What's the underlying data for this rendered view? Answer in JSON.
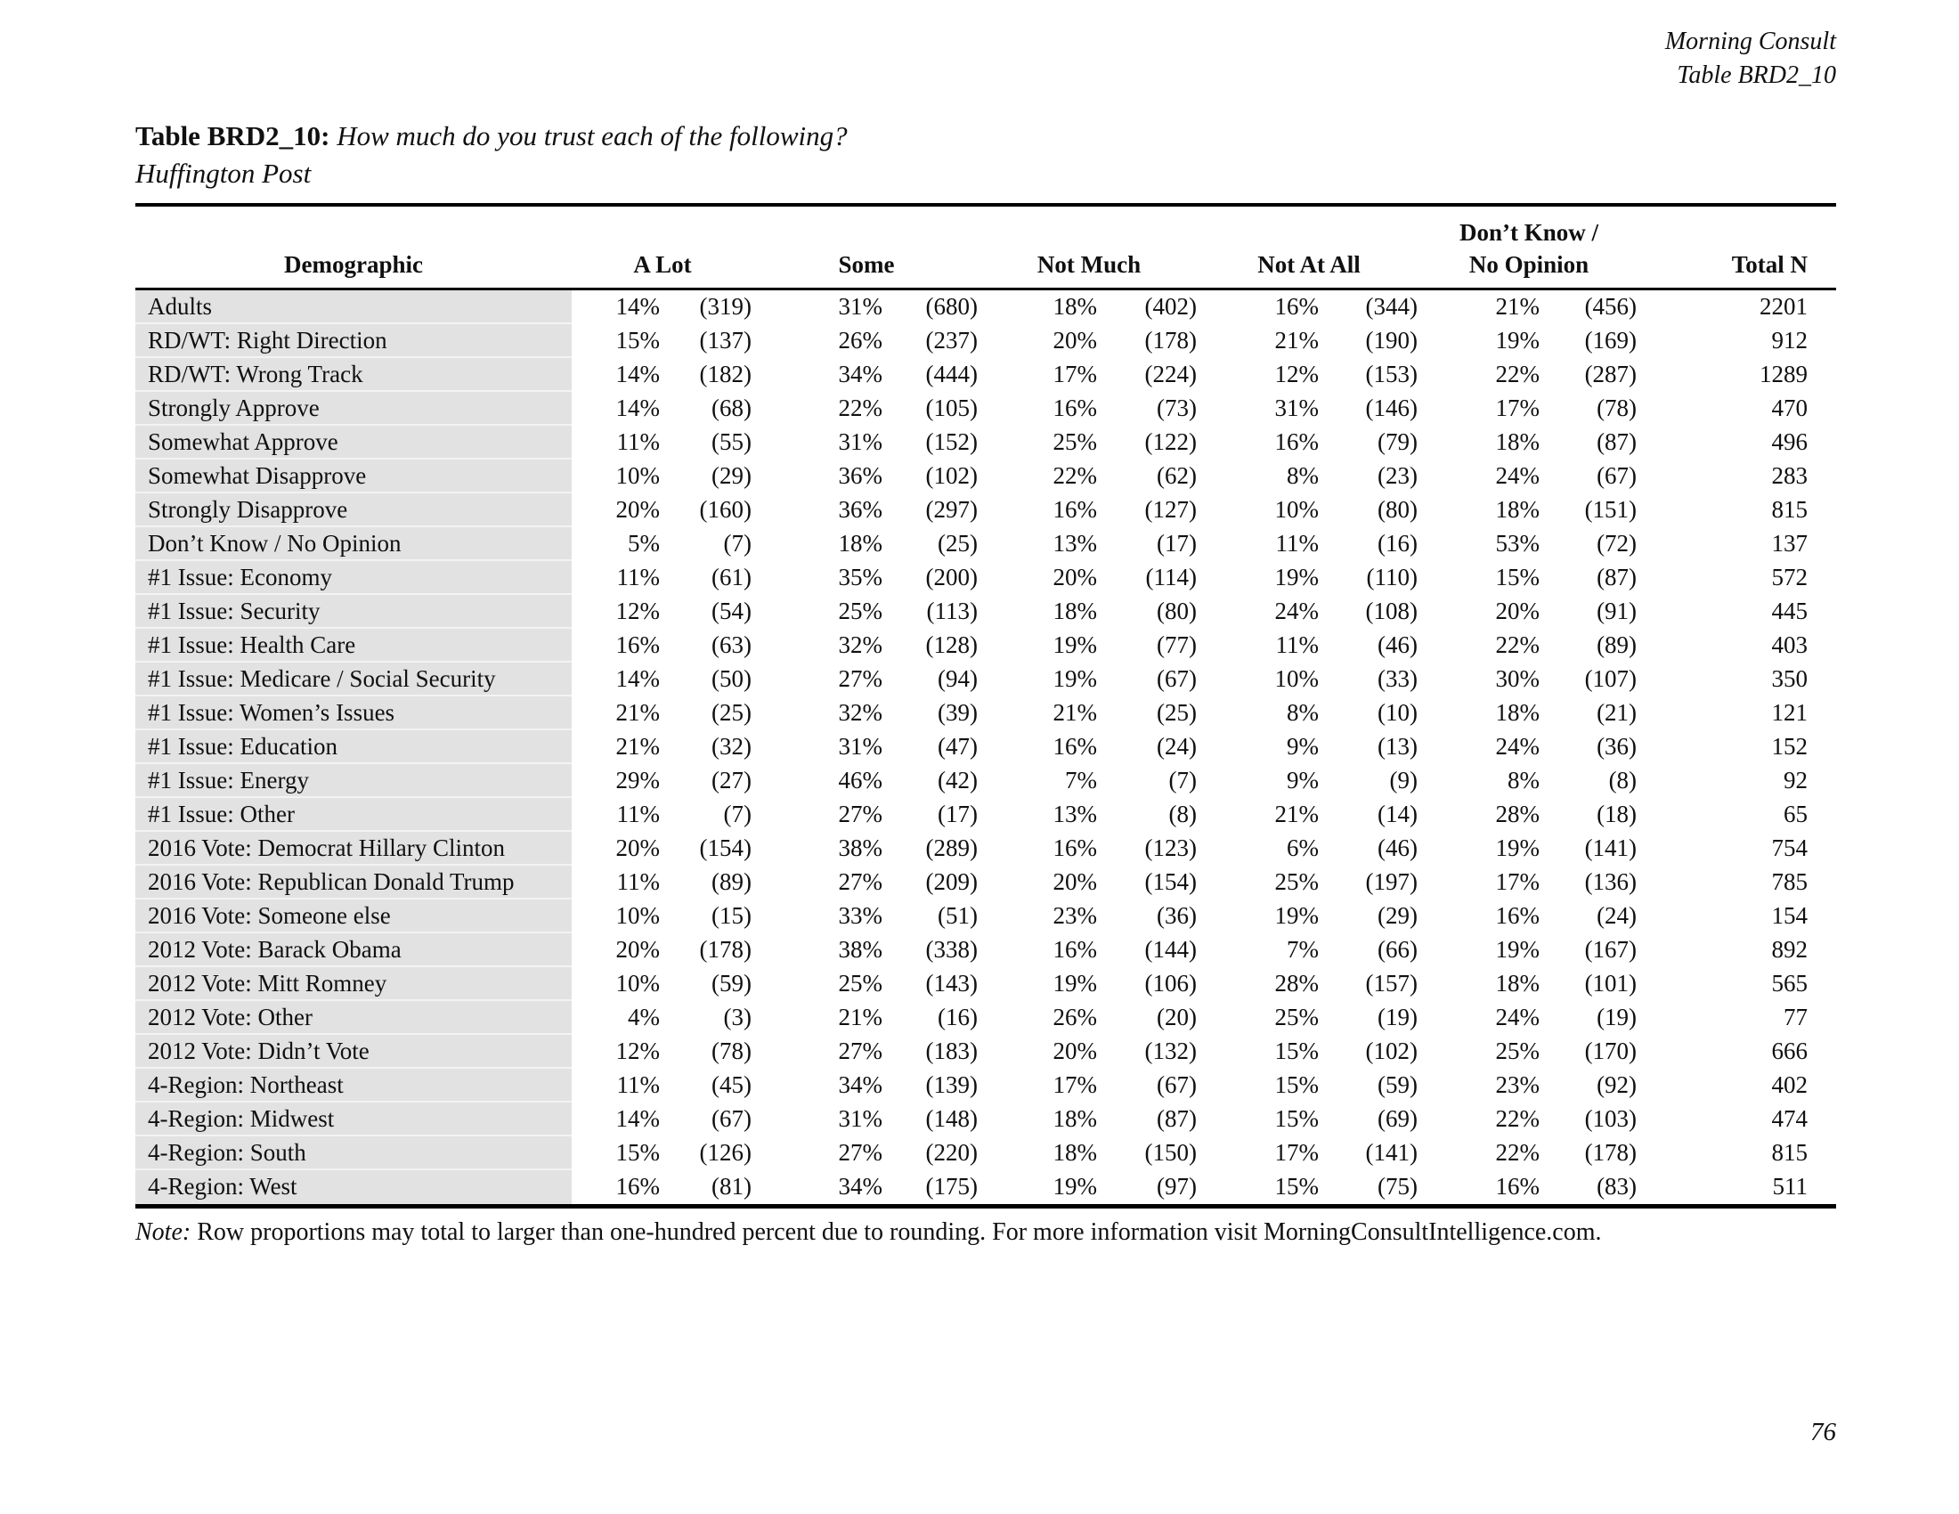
{
  "colors": {
    "demo_col_bg": "#e2e2e2",
    "rule_color": "#000000"
  },
  "page": {
    "corner_line1": "Morning Consult",
    "corner_line2": "Table BRD2_10",
    "title_label": "Table BRD2_10:",
    "title_question": "How much do you trust each of the following?",
    "subtitle": "Huffington Post",
    "note_label": "Note:",
    "note_text": "Row proportions may total to larger than one-hundred percent due to rounding. For more information visit MorningConsultIntelligence.com.",
    "page_number": "76"
  },
  "table": {
    "headers": {
      "demographic": "Demographic",
      "a_lot": "A Lot",
      "some": "Some",
      "not_much": "Not Much",
      "not_at_all": "Not At All",
      "dk_line1": "Don’t Know /",
      "dk_line2": "No Opinion",
      "total_n": "Total N"
    },
    "rows": [
      [
        "Adults",
        "14%",
        "(319)",
        "31%",
        "(680)",
        "18%",
        "(402)",
        "16%",
        "(344)",
        "21%",
        "(456)",
        "2201"
      ],
      [
        "RD/WT: Right Direction",
        "15%",
        "(137)",
        "26%",
        "(237)",
        "20%",
        "(178)",
        "21%",
        "(190)",
        "19%",
        "(169)",
        "912"
      ],
      [
        "RD/WT: Wrong Track",
        "14%",
        "(182)",
        "34%",
        "(444)",
        "17%",
        "(224)",
        "12%",
        "(153)",
        "22%",
        "(287)",
        "1289"
      ],
      [
        "Strongly Approve",
        "14%",
        "(68)",
        "22%",
        "(105)",
        "16%",
        "(73)",
        "31%",
        "(146)",
        "17%",
        "(78)",
        "470"
      ],
      [
        "Somewhat Approve",
        "11%",
        "(55)",
        "31%",
        "(152)",
        "25%",
        "(122)",
        "16%",
        "(79)",
        "18%",
        "(87)",
        "496"
      ],
      [
        "Somewhat Disapprove",
        "10%",
        "(29)",
        "36%",
        "(102)",
        "22%",
        "(62)",
        "8%",
        "(23)",
        "24%",
        "(67)",
        "283"
      ],
      [
        "Strongly Disapprove",
        "20%",
        "(160)",
        "36%",
        "(297)",
        "16%",
        "(127)",
        "10%",
        "(80)",
        "18%",
        "(151)",
        "815"
      ],
      [
        "Don’t Know / No Opinion",
        "5%",
        "(7)",
        "18%",
        "(25)",
        "13%",
        "(17)",
        "11%",
        "(16)",
        "53%",
        "(72)",
        "137"
      ],
      [
        "#1 Issue: Economy",
        "11%",
        "(61)",
        "35%",
        "(200)",
        "20%",
        "(114)",
        "19%",
        "(110)",
        "15%",
        "(87)",
        "572"
      ],
      [
        "#1 Issue: Security",
        "12%",
        "(54)",
        "25%",
        "(113)",
        "18%",
        "(80)",
        "24%",
        "(108)",
        "20%",
        "(91)",
        "445"
      ],
      [
        "#1 Issue: Health Care",
        "16%",
        "(63)",
        "32%",
        "(128)",
        "19%",
        "(77)",
        "11%",
        "(46)",
        "22%",
        "(89)",
        "403"
      ],
      [
        "#1 Issue: Medicare / Social Security",
        "14%",
        "(50)",
        "27%",
        "(94)",
        "19%",
        "(67)",
        "10%",
        "(33)",
        "30%",
        "(107)",
        "350"
      ],
      [
        "#1 Issue: Women’s Issues",
        "21%",
        "(25)",
        "32%",
        "(39)",
        "21%",
        "(25)",
        "8%",
        "(10)",
        "18%",
        "(21)",
        "121"
      ],
      [
        "#1 Issue: Education",
        "21%",
        "(32)",
        "31%",
        "(47)",
        "16%",
        "(24)",
        "9%",
        "(13)",
        "24%",
        "(36)",
        "152"
      ],
      [
        "#1 Issue: Energy",
        "29%",
        "(27)",
        "46%",
        "(42)",
        "7%",
        "(7)",
        "9%",
        "(9)",
        "8%",
        "(8)",
        "92"
      ],
      [
        "#1 Issue: Other",
        "11%",
        "(7)",
        "27%",
        "(17)",
        "13%",
        "(8)",
        "21%",
        "(14)",
        "28%",
        "(18)",
        "65"
      ],
      [
        "2016 Vote: Democrat Hillary Clinton",
        "20%",
        "(154)",
        "38%",
        "(289)",
        "16%",
        "(123)",
        "6%",
        "(46)",
        "19%",
        "(141)",
        "754"
      ],
      [
        "2016 Vote: Republican Donald Trump",
        "11%",
        "(89)",
        "27%",
        "(209)",
        "20%",
        "(154)",
        "25%",
        "(197)",
        "17%",
        "(136)",
        "785"
      ],
      [
        "2016 Vote: Someone else",
        "10%",
        "(15)",
        "33%",
        "(51)",
        "23%",
        "(36)",
        "19%",
        "(29)",
        "16%",
        "(24)",
        "154"
      ],
      [
        "2012 Vote: Barack Obama",
        "20%",
        "(178)",
        "38%",
        "(338)",
        "16%",
        "(144)",
        "7%",
        "(66)",
        "19%",
        "(167)",
        "892"
      ],
      [
        "2012 Vote: Mitt Romney",
        "10%",
        "(59)",
        "25%",
        "(143)",
        "19%",
        "(106)",
        "28%",
        "(157)",
        "18%",
        "(101)",
        "565"
      ],
      [
        "2012 Vote: Other",
        "4%",
        "(3)",
        "21%",
        "(16)",
        "26%",
        "(20)",
        "25%",
        "(19)",
        "24%",
        "(19)",
        "77"
      ],
      [
        "2012 Vote: Didn’t Vote",
        "12%",
        "(78)",
        "27%",
        "(183)",
        "20%",
        "(132)",
        "15%",
        "(102)",
        "25%",
        "(170)",
        "666"
      ],
      [
        "4-Region: Northeast",
        "11%",
        "(45)",
        "34%",
        "(139)",
        "17%",
        "(67)",
        "15%",
        "(59)",
        "23%",
        "(92)",
        "402"
      ],
      [
        "4-Region: Midwest",
        "14%",
        "(67)",
        "31%",
        "(148)",
        "18%",
        "(87)",
        "15%",
        "(69)",
        "22%",
        "(103)",
        "474"
      ],
      [
        "4-Region: South",
        "15%",
        "(126)",
        "27%",
        "(220)",
        "18%",
        "(150)",
        "17%",
        "(141)",
        "22%",
        "(178)",
        "815"
      ],
      [
        "4-Region: West",
        "16%",
        "(81)",
        "34%",
        "(175)",
        "19%",
        "(97)",
        "15%",
        "(75)",
        "16%",
        "(83)",
        "511"
      ]
    ]
  }
}
